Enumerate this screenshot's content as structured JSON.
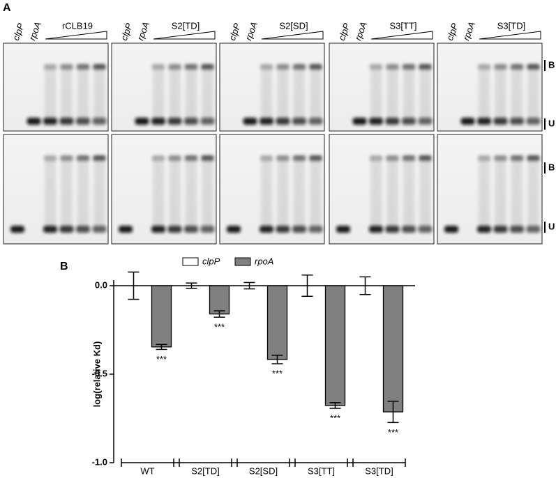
{
  "panel_a": {
    "label": "A",
    "gels": [
      {
        "lanes": [
          "clpP",
          "rpoA"
        ],
        "protein": "rCLB19"
      },
      {
        "lanes": [
          "clpP",
          "rpoA"
        ],
        "protein": "S2[TD]"
      },
      {
        "lanes": [
          "clpP",
          "rpoA"
        ],
        "protein": "S2[SD]"
      },
      {
        "lanes": [
          "clpP",
          "rpoA"
        ],
        "protein": "S3[TT]"
      },
      {
        "lanes": [
          "clpP",
          "rpoA"
        ],
        "protein": "S3[TD]"
      }
    ],
    "band_labels": [
      "B",
      "U"
    ]
  },
  "chart_data": {
    "type": "bar",
    "panel_label": "B",
    "ylabel": "log(relative Kd)",
    "categories": [
      "WT",
      "S2[TD]",
      "S2[SD]",
      "S3[TT]",
      "S3[TD]"
    ],
    "series": [
      {
        "name": "clpP",
        "color": "#ffffff",
        "values": [
          0,
          0,
          0,
          0,
          0
        ],
        "errors": [
          0.077,
          0.015,
          0.018,
          0.06,
          0.05
        ]
      },
      {
        "name": "rpoA",
        "color": "#808080",
        "values": [
          -0.346,
          -0.16,
          -0.417,
          -0.677,
          -0.713
        ],
        "errors": [
          0.014,
          0.018,
          0.024,
          0.016,
          0.06
        ],
        "annotations": [
          "***",
          "***",
          "***",
          "***",
          "***"
        ]
      }
    ],
    "ylim": [
      -1,
      0
    ],
    "yticks": [
      {
        "value": 0,
        "label": "0.0"
      },
      {
        "value": -0.5,
        "label": "-0.5"
      },
      {
        "value": -1,
        "label": "-1.0"
      }
    ]
  }
}
